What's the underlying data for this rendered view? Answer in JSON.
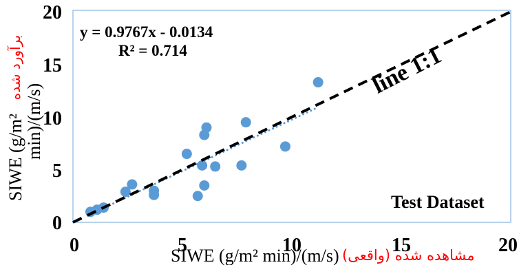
{
  "chart_data": {
    "type": "scatter",
    "title": "",
    "xlabel": "SIWE (g/m² min)/(m/s)",
    "xlabel_fa": "مشاهده شده (واقعی)",
    "ylabel": {
      "line1": "SIWE (g/m²",
      "line2": "min)/(m/s)",
      "fa": "برآورد شده"
    },
    "xlim": [
      0,
      20
    ],
    "ylim": [
      0,
      20
    ],
    "xticks": [
      "0",
      "5",
      "10",
      "15",
      "20"
    ],
    "yticks": [
      "0",
      "5",
      "10",
      "15",
      "20"
    ],
    "grid": false,
    "legend": "none",
    "series": [
      {
        "color": "#5B9BD5",
        "x": [
          0.8,
          1.1,
          1.4,
          2.4,
          2.7,
          3.7,
          3.7,
          5.2,
          5.7,
          5.9,
          6.0,
          6.0,
          6.1,
          6.5,
          7.7,
          7.9,
          9.7,
          11.2
        ],
        "y": [
          1.0,
          1.2,
          1.4,
          2.9,
          3.6,
          3.0,
          2.6,
          6.5,
          2.5,
          5.4,
          3.5,
          8.3,
          9.0,
          5.3,
          5.4,
          9.5,
          7.2,
          13.3
        ]
      }
    ],
    "trendline": {
      "type": "linear",
      "slope": 0.9767,
      "intercept": -0.0134,
      "equation": "y = 0.9767x - 0.0134",
      "r2_label": "R² = 0.714",
      "color": "#5B9BD5",
      "style": "dotted"
    },
    "reference_line": {
      "label": "line 1:1",
      "slope": 1,
      "intercept": 0,
      "color": "#000000",
      "style": "dashed"
    },
    "dataset_label": "Test Dataset",
    "colors": {
      "frame": "#9DC3E6",
      "persian_text": "#FF0000"
    }
  }
}
